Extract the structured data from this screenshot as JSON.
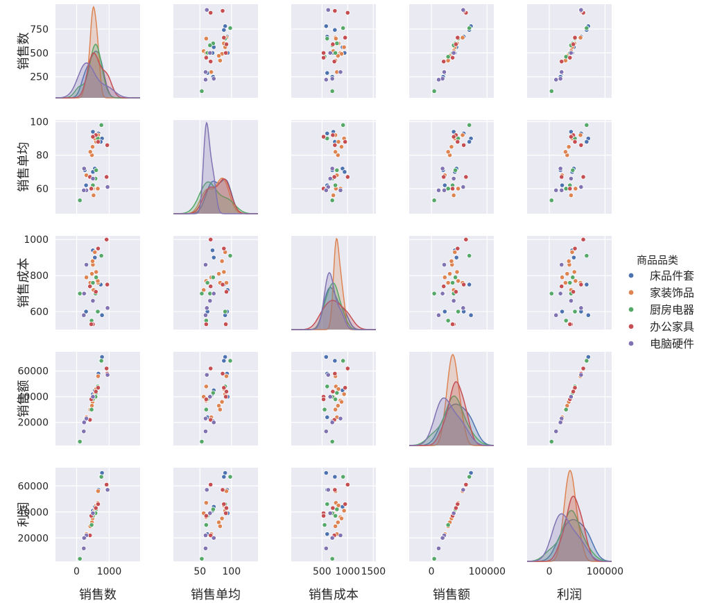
{
  "chart_data": {
    "type": "scatter",
    "subtype": "pairplot",
    "title": "",
    "variables": [
      "销售数",
      "销售单均",
      "销售成本",
      "销售额",
      "利润"
    ],
    "diagonal": "kde",
    "hue_title": "商品品类",
    "legend_position": "right-center",
    "grid": true,
    "background": "#eaeaf2",
    "series": [
      {
        "name": "床品件套",
        "color": "#4c72b0",
        "points": [
          [
            780,
            90,
            580,
            71000,
            70000
          ],
          [
            740,
            88,
            750,
            68000,
            67000
          ],
          [
            560,
            72,
            900,
            45000,
            44000
          ],
          [
            500,
            70,
            940,
            42000,
            41000
          ],
          [
            290,
            62,
            600,
            24000,
            23000
          ],
          [
            250,
            71,
            700,
            21000,
            20000
          ],
          [
            670,
            93,
            600,
            58000,
            57000
          ],
          [
            500,
            94,
            720,
            40000,
            39000
          ]
        ]
      },
      {
        "name": "家装饰品",
        "color": "#dd8452",
        "points": [
          [
            660,
            92,
            760,
            56000,
            56000
          ],
          [
            650,
            60,
            770,
            48000,
            47000
          ],
          [
            600,
            88,
            820,
            46000,
            45000
          ],
          [
            560,
            90,
            930,
            42000,
            41000
          ],
          [
            520,
            56,
            720,
            40000,
            39000
          ],
          [
            500,
            60,
            860,
            37000,
            36000
          ],
          [
            490,
            85,
            880,
            36000,
            35000
          ],
          [
            470,
            80,
            810,
            33000,
            32000
          ],
          [
            420,
            82,
            760,
            30000,
            29000
          ],
          [
            300,
            68,
            790,
            24000,
            23000
          ]
        ]
      },
      {
        "name": "厨房电器",
        "color": "#55a868",
        "points": [
          [
            760,
            98,
            910,
            68000,
            67000
          ],
          [
            650,
            90,
            600,
            48000,
            46000
          ],
          [
            600,
            71,
            790,
            43000,
            42000
          ],
          [
            580,
            66,
            700,
            40000,
            39000
          ],
          [
            500,
            62,
            760,
            38000,
            37000
          ],
          [
            460,
            60,
            550,
            30000,
            30000
          ],
          [
            100,
            53,
            700,
            5000,
            4000
          ]
        ]
      },
      {
        "name": "办公家具",
        "color": "#c44e52",
        "points": [
          [
            920,
            67,
            1000,
            62000,
            61000
          ],
          [
            940,
            86,
            750,
            58000,
            57000
          ],
          [
            660,
            88,
            950,
            47000,
            46000
          ],
          [
            590,
            92,
            710,
            44000,
            43000
          ],
          [
            500,
            91,
            530,
            40000,
            39000
          ],
          [
            450,
            60,
            530,
            38000,
            37000
          ],
          [
            410,
            67,
            740,
            22000,
            22000
          ]
        ]
      },
      {
        "name": "电脑硬件",
        "color": "#8172b2",
        "points": [
          [
            950,
            61,
            620,
            57000,
            57000
          ],
          [
            500,
            66,
            660,
            40000,
            39000
          ],
          [
            300,
            59,
            860,
            23000,
            22000
          ],
          [
            230,
            72,
            700,
            20000,
            20000
          ],
          [
            220,
            59,
            580,
            13000,
            12000
          ]
        ]
      }
    ],
    "axes": [
      {
        "name": "销售数",
        "label": "销售数",
        "xlim": [
          -650,
          1950
        ],
        "ylim": [
          30,
          1010
        ],
        "xticks": [
          0,
          1000
        ],
        "yticks": [
          250,
          500,
          750
        ]
      },
      {
        "name": "销售单均",
        "label": "销售单均",
        "xlim": [
          8,
          142
        ],
        "ylim": [
          45,
          101
        ],
        "xticks": [
          50,
          100
        ],
        "yticks": [
          60,
          80,
          100
        ]
      },
      {
        "name": "销售成本",
        "label": "销售成本",
        "xlim": [
          -100,
          1550
        ],
        "ylim": [
          500,
          1020
        ],
        "xticks": [
          500,
          1000,
          1500
        ],
        "yticks": [
          600,
          800,
          1000
        ]
      },
      {
        "name": "销售额",
        "label": "销售额",
        "xlim": [
          -40000,
          112000
        ],
        "ylim": [
          2000,
          75000
        ],
        "xticks": [
          0,
          100000
        ],
        "yticks": [
          20000,
          40000,
          60000
        ]
      },
      {
        "name": "利润",
        "label": "利润",
        "xlim": [
          -40000,
          112000
        ],
        "ylim": [
          2000,
          74000
        ],
        "xticks": [
          0,
          100000
        ],
        "yticks": [
          20000,
          40000,
          60000
        ]
      }
    ]
  }
}
